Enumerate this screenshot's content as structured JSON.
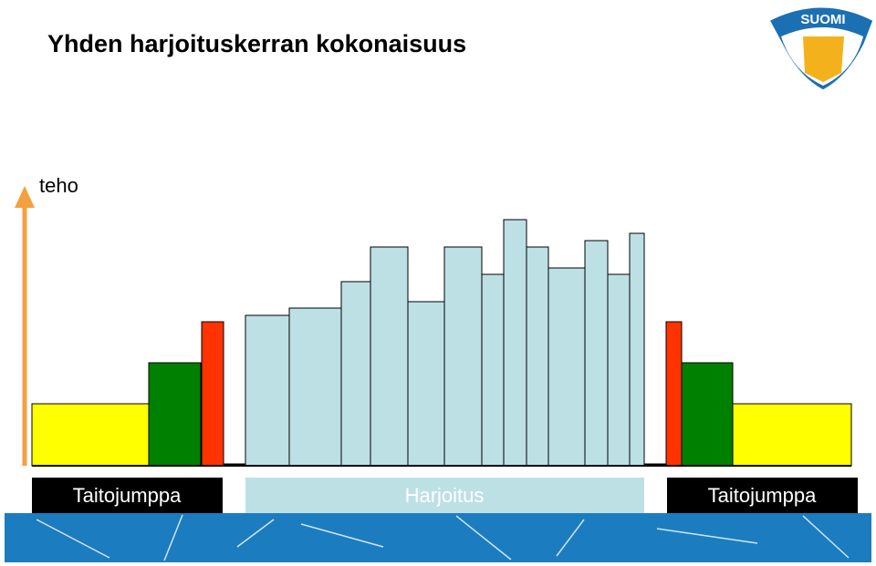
{
  "header": {
    "title": "Yhden harjoituskerran kokonaisuus",
    "logo": "SUOMI"
  },
  "axis": {
    "label": "teho"
  },
  "phases": [
    "Taitojumppa",
    "Harjoitus",
    "Taitojumppa"
  ]
}
